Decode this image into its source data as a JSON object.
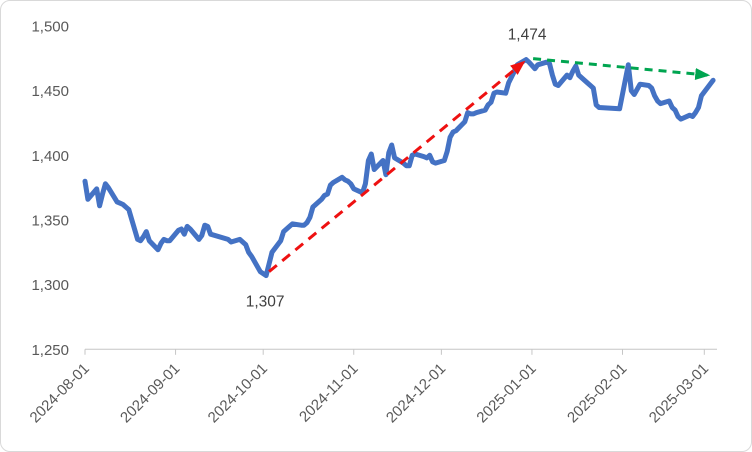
{
  "chart_data": {
    "type": "line",
    "title": "",
    "xlabel": "",
    "ylabel": "",
    "grid": false,
    "legend": "none",
    "y_axis": {
      "labels": [
        "1,500",
        "1,450",
        "1,400",
        "1,350",
        "1,300",
        "1,250"
      ],
      "max": 1500,
      "min": 1250,
      "step": 50
    },
    "x_axis": {
      "tick_labels": [
        "2024-08-01",
        "2024-09-01",
        "2024-10-01",
        "2024-11-01",
        "2024-12-01",
        "2025-01-01",
        "2025-02-01",
        "2025-03-01"
      ]
    },
    "series": {
      "color": "#4472C4",
      "points": [
        [
          "2024-08-01",
          1380
        ],
        [
          "2024-08-02",
          1366
        ],
        [
          "2024-08-05",
          1374
        ],
        [
          "2024-08-06",
          1361
        ],
        [
          "2024-08-07",
          1370
        ],
        [
          "2024-08-08",
          1378
        ],
        [
          "2024-08-09",
          1375
        ],
        [
          "2024-08-12",
          1364
        ],
        [
          "2024-08-13",
          1363
        ],
        [
          "2024-08-14",
          1362
        ],
        [
          "2024-08-16",
          1358
        ],
        [
          "2024-08-19",
          1335
        ],
        [
          "2024-08-20",
          1334
        ],
        [
          "2024-08-21",
          1337
        ],
        [
          "2024-08-22",
          1341
        ],
        [
          "2024-08-23",
          1334
        ],
        [
          "2024-08-26",
          1327
        ],
        [
          "2024-08-27",
          1332
        ],
        [
          "2024-08-28",
          1335
        ],
        [
          "2024-08-29",
          1334
        ],
        [
          "2024-08-30",
          1334
        ],
        [
          "2024-09-02",
          1342
        ],
        [
          "2024-09-03",
          1343
        ],
        [
          "2024-09-04",
          1339
        ],
        [
          "2024-09-05",
          1345
        ],
        [
          "2024-09-06",
          1343
        ],
        [
          "2024-09-09",
          1335
        ],
        [
          "2024-09-10",
          1338
        ],
        [
          "2024-09-11",
          1346
        ],
        [
          "2024-09-12",
          1345
        ],
        [
          "2024-09-13",
          1339
        ],
        [
          "2024-09-19",
          1335
        ],
        [
          "2024-09-20",
          1333
        ],
        [
          "2024-09-23",
          1335
        ],
        [
          "2024-09-24",
          1333
        ],
        [
          "2024-09-25",
          1331
        ],
        [
          "2024-09-26",
          1325
        ],
        [
          "2024-09-27",
          1322
        ],
        [
          "2024-09-30",
          1310
        ],
        [
          "2024-10-02",
          1307
        ],
        [
          "2024-10-04",
          1325
        ],
        [
          "2024-10-07",
          1334
        ],
        [
          "2024-10-08",
          1341
        ],
        [
          "2024-10-10",
          1345
        ],
        [
          "2024-10-11",
          1347
        ],
        [
          "2024-10-14",
          1346
        ],
        [
          "2024-10-15",
          1346
        ],
        [
          "2024-10-16",
          1348
        ],
        [
          "2024-10-17",
          1352
        ],
        [
          "2024-10-18",
          1360
        ],
        [
          "2024-10-21",
          1366
        ],
        [
          "2024-10-22",
          1369
        ],
        [
          "2024-10-23",
          1370
        ],
        [
          "2024-10-24",
          1377
        ],
        [
          "2024-10-25",
          1379
        ],
        [
          "2024-10-28",
          1383
        ],
        [
          "2024-10-29",
          1381
        ],
        [
          "2024-10-30",
          1380
        ],
        [
          "2024-10-31",
          1378
        ],
        [
          "2024-11-01",
          1374
        ],
        [
          "2024-11-04",
          1371
        ],
        [
          "2024-11-05",
          1378
        ],
        [
          "2024-11-06",
          1396
        ],
        [
          "2024-11-07",
          1401
        ],
        [
          "2024-11-08",
          1389
        ],
        [
          "2024-11-11",
          1396
        ],
        [
          "2024-11-12",
          1385
        ],
        [
          "2024-11-13",
          1402
        ],
        [
          "2024-11-14",
          1408
        ],
        [
          "2024-11-15",
          1398
        ],
        [
          "2024-11-18",
          1394
        ],
        [
          "2024-11-19",
          1392
        ],
        [
          "2024-11-20",
          1392
        ],
        [
          "2024-11-21",
          1400
        ],
        [
          "2024-11-22",
          1401
        ],
        [
          "2024-11-25",
          1399
        ],
        [
          "2024-11-26",
          1398
        ],
        [
          "2024-11-27",
          1400
        ],
        [
          "2024-11-28",
          1395
        ],
        [
          "2024-11-29",
          1394
        ],
        [
          "2024-12-02",
          1396
        ],
        [
          "2024-12-03",
          1403
        ],
        [
          "2024-12-04",
          1414
        ],
        [
          "2024-12-05",
          1418
        ],
        [
          "2024-12-06",
          1419
        ],
        [
          "2024-12-09",
          1426
        ],
        [
          "2024-12-10",
          1433
        ],
        [
          "2024-12-11",
          1432
        ],
        [
          "2024-12-12",
          1432
        ],
        [
          "2024-12-13",
          1433
        ],
        [
          "2024-12-16",
          1435
        ],
        [
          "2024-12-17",
          1439
        ],
        [
          "2024-12-18",
          1441
        ],
        [
          "2024-12-19",
          1448
        ],
        [
          "2024-12-20",
          1449
        ],
        [
          "2024-12-23",
          1448
        ],
        [
          "2024-12-24",
          1456
        ],
        [
          "2024-12-26",
          1465
        ],
        [
          "2024-12-27",
          1470
        ],
        [
          "2024-12-30",
          1474
        ],
        [
          "2024-12-31",
          1472
        ],
        [
          "2025-01-02",
          1467
        ],
        [
          "2025-01-03",
          1470
        ],
        [
          "2025-01-06",
          1472
        ],
        [
          "2025-01-07",
          1471
        ],
        [
          "2025-01-08",
          1462
        ],
        [
          "2025-01-09",
          1455
        ],
        [
          "2025-01-10",
          1454
        ],
        [
          "2025-01-13",
          1462
        ],
        [
          "2025-01-14",
          1460
        ],
        [
          "2025-01-15",
          1465
        ],
        [
          "2025-01-16",
          1469
        ],
        [
          "2025-01-17",
          1462
        ],
        [
          "2025-01-20",
          1456
        ],
        [
          "2025-01-21",
          1454
        ],
        [
          "2025-01-22",
          1452
        ],
        [
          "2025-01-23",
          1439
        ],
        [
          "2025-01-24",
          1437
        ],
        [
          "2025-01-31",
          1436
        ],
        [
          "2025-02-03",
          1470
        ],
        [
          "2025-02-04",
          1450
        ],
        [
          "2025-02-05",
          1447
        ],
        [
          "2025-02-06",
          1451
        ],
        [
          "2025-02-07",
          1455
        ],
        [
          "2025-02-10",
          1454
        ],
        [
          "2025-02-11",
          1452
        ],
        [
          "2025-02-12",
          1446
        ],
        [
          "2025-02-13",
          1442
        ],
        [
          "2025-02-14",
          1440
        ],
        [
          "2025-02-17",
          1442
        ],
        [
          "2025-02-18",
          1437
        ],
        [
          "2025-02-19",
          1435
        ],
        [
          "2025-02-20",
          1430
        ],
        [
          "2025-02-21",
          1428
        ],
        [
          "2025-02-24",
          1431
        ],
        [
          "2025-02-25",
          1430
        ],
        [
          "2025-02-26",
          1433
        ],
        [
          "2025-02-27",
          1437
        ],
        [
          "2025-02-28",
          1446
        ],
        [
          "2025-03-04",
          1458
        ]
      ]
    },
    "annotations": {
      "peak": {
        "label": "1,474",
        "date": "2024-12-30",
        "value": 1474
      },
      "low": {
        "label": "1,307",
        "date": "2024-10-02",
        "value": 1307
      },
      "uptrend_arrow": {
        "color": "#EE1111",
        "style": "dashed",
        "from": {
          "date": "2024-10-02",
          "value": 1307
        },
        "to": {
          "date": "2024-12-30",
          "value": 1474
        }
      },
      "downtrend_arrow": {
        "color": "#00A550",
        "style": "dashed",
        "from": {
          "date": "2024-12-30",
          "value": 1474
        },
        "to": {
          "date": "2025-03-02",
          "value": 1462
        }
      }
    },
    "colors": {
      "line": "#4472C4",
      "up_arrow": "#EE1111",
      "down_arrow": "#00A550",
      "axis_text": "#595959",
      "annotation_text": "#404040",
      "axis_line": "#c6c6c6"
    }
  }
}
